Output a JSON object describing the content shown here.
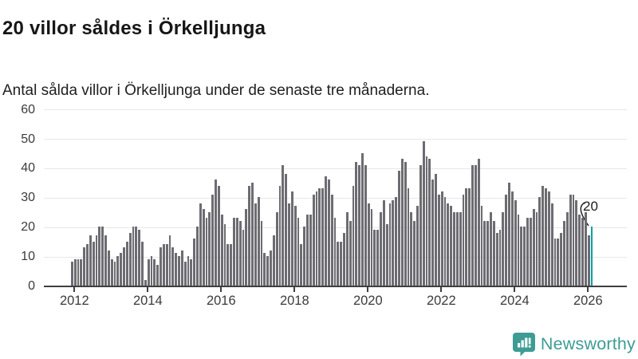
{
  "header": {
    "title": "20 villor såldes i Örkelljunga",
    "subtitle": "Antal sålda villor i Örkelljunga under de senaste tre månaderna."
  },
  "chart_data": {
    "type": "bar",
    "title": "20 villor såldes i Örkelljunga",
    "subtitle": "Antal sålda villor i Örkelljunga under de senaste tre månaderna.",
    "frequency": "monthly",
    "x_start": "2012-01",
    "x_end": "2026-03",
    "ylim": [
      0,
      60
    ],
    "yticks": [
      0,
      10,
      20,
      30,
      40,
      50,
      60
    ],
    "xticks": [
      2012,
      2014,
      2016,
      2018,
      2020,
      2022,
      2024,
      2026
    ],
    "grid": "horizontal",
    "legend": "none",
    "values": [
      8,
      9,
      9,
      9,
      13,
      14,
      17,
      15,
      17,
      20,
      20,
      17,
      12,
      9,
      8,
      10,
      11,
      13,
      15,
      18,
      20,
      20,
      19,
      15,
      2,
      9,
      10,
      9,
      7,
      13,
      14,
      14,
      17,
      13,
      11,
      10,
      12,
      8,
      10,
      9,
      16,
      20,
      28,
      26,
      23,
      25,
      31,
      36,
      34,
      24,
      21,
      14,
      14,
      23,
      23,
      22,
      19,
      26,
      34,
      35,
      28,
      30,
      22,
      11,
      10,
      12,
      17,
      25,
      34,
      41,
      38,
      28,
      32,
      27,
      23,
      14,
      20,
      24,
      24,
      31,
      32,
      33,
      33,
      37,
      36,
      31,
      23,
      15,
      15,
      18,
      25,
      22,
      34,
      42,
      41,
      45,
      41,
      28,
      26,
      19,
      19,
      25,
      29,
      21,
      28,
      29,
      30,
      39,
      43,
      42,
      33,
      25,
      22,
      27,
      41,
      49,
      44,
      43,
      36,
      38,
      31,
      32,
      30,
      28,
      27,
      25,
      25,
      25,
      31,
      33,
      33,
      41,
      41,
      43,
      27,
      22,
      22,
      25,
      22,
      18,
      19,
      25,
      31,
      35,
      32,
      29,
      24,
      20,
      20,
      23,
      23,
      26,
      25,
      30,
      34,
      33,
      32,
      28,
      16,
      16,
      18,
      22,
      25,
      31,
      31,
      29,
      24,
      23,
      25,
      17,
      20
    ],
    "highlight_index": 170,
    "annotation": {
      "label": "20",
      "target": "last-bar"
    },
    "colors": {
      "bar": "#6c6c72",
      "highlight": "#00a2a2"
    }
  },
  "footer": {
    "brand": "Newsworthy",
    "logo_color": "#3d9c94"
  }
}
